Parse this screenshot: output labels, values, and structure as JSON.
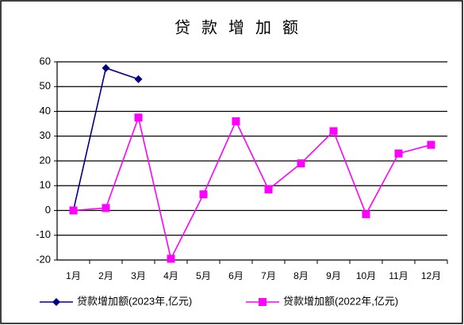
{
  "chart_data": {
    "type": "line",
    "title": "贷款增加额",
    "categories": [
      "1月",
      "2月",
      "3月",
      "4月",
      "5月",
      "6月",
      "7月",
      "8月",
      "9月",
      "10月",
      "11月",
      "12月"
    ],
    "series": [
      {
        "name": "贷款增加额(2023年,亿元)",
        "color": "#000080",
        "marker": "diamond",
        "values": [
          0,
          57.5,
          53,
          null,
          null,
          null,
          null,
          null,
          null,
          null,
          null,
          null
        ]
      },
      {
        "name": "贷款增加额(2022年,亿元)",
        "color": "#ff00ff",
        "marker": "square",
        "values": [
          0,
          1,
          37.5,
          -19.5,
          6.5,
          36,
          8.5,
          19,
          32,
          -1.5,
          23,
          26.5
        ]
      }
    ],
    "ylim": [
      -20,
      60
    ],
    "yticks": [
      -20,
      -10,
      0,
      10,
      20,
      30,
      40,
      50,
      60
    ],
    "grid": true,
    "legend": "bottom"
  }
}
